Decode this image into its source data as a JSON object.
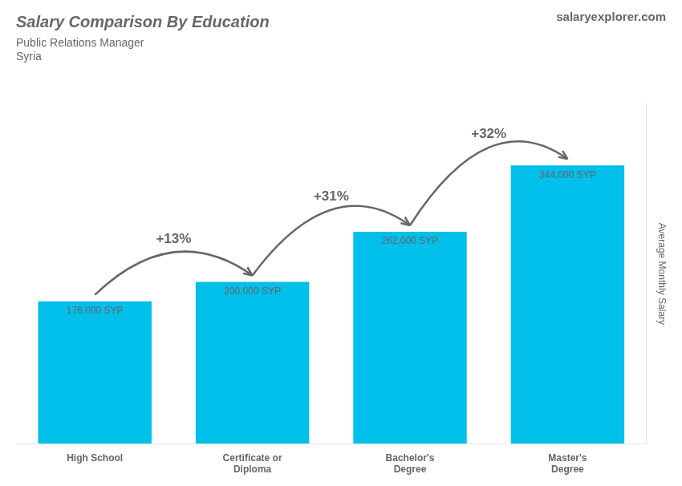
{
  "chart_data": {
    "type": "bar",
    "title": "Salary Comparison By Education",
    "subtitle": [
      "Public Relations Manager",
      "Syria"
    ],
    "y_label": "Average Monthly Salary",
    "categories": [
      "High School",
      "Certificate or\nDiploma",
      "Bachelor's\nDegree",
      "Master's\nDegree"
    ],
    "values": [
      176000,
      200000,
      262000,
      344000
    ],
    "value_labels": [
      "176,000 SYP",
      "200,000 SYP",
      "262,000 SYP",
      "344,000 SYP"
    ],
    "data_labels": true,
    "color": "#00bfea",
    "ylim": [
      0,
      420000
    ],
    "tick_labels": "x",
    "grid": false,
    "annotations": [
      {
        "text": "salary"
      },
      {
        "text": "explorer.com"
      },
      {
        "text": "+13%",
        "from": "High School",
        "to": "Certificate or\nDiploma"
      },
      {
        "text": "+31%",
        "from": "Certificate or\nDiploma",
        "to": "Bachelor's\nDegree"
      },
      {
        "text": "+32%",
        "from": "Bachelor's\nDegree",
        "to": "Master's\nDegree"
      }
    ]
  }
}
